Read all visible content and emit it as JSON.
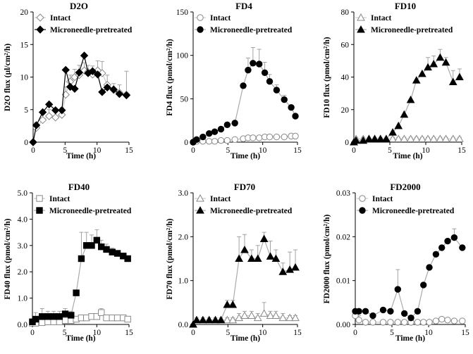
{
  "chart_data": [
    {
      "type": "line",
      "title": "D2O",
      "xlabel": "Time (h)",
      "ylabel": "D2O flux (µl/cm²/h)",
      "xlim": [
        0,
        15
      ],
      "ylim": [
        0,
        20
      ],
      "xticks": [
        "0",
        "5",
        "10",
        "15"
      ],
      "yticks": [
        "0",
        "5",
        "10",
        "15",
        "20"
      ],
      "legend_position": "top-left",
      "x": [
        0,
        0.5,
        1.5,
        2.5,
        3.5,
        4.5,
        5.1,
        5.8,
        6.5,
        7.2,
        8,
        8.6,
        9.3,
        10.1,
        10.8,
        11.6,
        12.6,
        13.5,
        14.6
      ],
      "series": [
        {
          "name": "Intact",
          "marker": "diamond-open",
          "line_color": "#cccccc",
          "values": [
            0,
            2.2,
            3.4,
            4.0,
            3.8,
            4.2,
            7.3,
            9.3,
            10.0,
            10.3,
            11.0,
            10.8,
            10.4,
            11.0,
            10.6,
            8.8,
            8.0,
            7.6,
            7.3
          ],
          "errors": [
            0,
            0.8,
            0.9,
            1.0,
            0.8,
            1.1,
            1.2,
            1.0,
            1.2,
            1.5,
            1.2,
            1.0,
            1.3,
            1.5,
            1.8,
            1.5,
            1.0,
            1.2,
            3.6
          ]
        },
        {
          "name": "Microneedle-pretreated",
          "marker": "diamond-filled",
          "line_color": "#000000",
          "values": [
            0,
            2.6,
            4.6,
            5.8,
            4.9,
            4.9,
            11.1,
            8.5,
            8.2,
            10.7,
            13.3,
            10.6,
            10.9,
            10.4,
            7.7,
            8.4,
            8.1,
            7.4,
            7.2
          ],
          "errors": [
            0,
            0,
            0,
            0,
            0,
            0,
            0,
            0,
            0,
            0,
            0,
            0,
            0,
            0,
            0,
            0,
            0,
            0,
            0
          ]
        }
      ]
    },
    {
      "type": "line",
      "title": "FD4",
      "xlabel": "Time (h)",
      "ylabel": "FD4 flux (pmol/cm²/h)",
      "xlim": [
        0,
        15
      ],
      "ylim": [
        0,
        150
      ],
      "xticks": [
        "0",
        "5",
        "10",
        "15"
      ],
      "yticks": [
        "0",
        "50",
        "100",
        "150"
      ],
      "legend_position": "top-left",
      "x": [
        0,
        0.5,
        1.4,
        2.3,
        3.1,
        4.0,
        4.9,
        6.0,
        7.2,
        7.9,
        8.6,
        9.5,
        10.3,
        11.0,
        12.0,
        13.1,
        14.1,
        14.7
      ],
      "series": [
        {
          "name": "Intact",
          "marker": "circle-open",
          "line_color": "#cccccc",
          "values": [
            0,
            1,
            1,
            1,
            1,
            2,
            2,
            3,
            4,
            5,
            5,
            5,
            6,
            6,
            6,
            6,
            7,
            7
          ],
          "errors": [
            0,
            0,
            0,
            0,
            0,
            0,
            0,
            0,
            0,
            0,
            0,
            0,
            0,
            0,
            0,
            0,
            0,
            0
          ]
        },
        {
          "name": "Microneedle-pretreated",
          "marker": "circle-filled",
          "line_color": "#aaaaaa",
          "values": [
            0,
            3,
            6,
            10,
            12,
            15,
            20,
            22,
            65,
            83,
            91,
            90,
            80,
            70,
            60,
            49,
            40,
            30
          ],
          "errors": [
            0,
            0,
            0,
            0,
            0,
            0,
            0,
            0,
            0,
            14,
            18,
            17,
            12,
            8,
            6,
            5,
            0,
            0
          ]
        }
      ]
    },
    {
      "type": "line",
      "title": "FD10",
      "xlabel": "Time (h)",
      "ylabel": "FD10 flux (pmol/cm²/h)",
      "xlim": [
        0,
        15
      ],
      "ylim": [
        0,
        80
      ],
      "xticks": [
        "0",
        "5",
        "10",
        "15"
      ],
      "yticks": [
        "0",
        "20",
        "40",
        "60",
        "80"
      ],
      "legend_position": "top-left",
      "x": [
        0,
        0.3,
        1.3,
        2.1,
        2.9,
        3.7,
        4.5,
        5.4,
        6.2,
        7.0,
        7.9,
        8.7,
        9.5,
        10.3,
        11.1,
        12.0,
        12.8,
        13.8,
        14.7
      ],
      "series": [
        {
          "name": "Intact",
          "marker": "triangle-open",
          "line_color": "#cccccc",
          "values": [
            0,
            2,
            2,
            2,
            2,
            2,
            2,
            2,
            2,
            2,
            2,
            2,
            2,
            2,
            2,
            2,
            2,
            2,
            2
          ],
          "errors": [
            0,
            1,
            1,
            1,
            1,
            1,
            1,
            1,
            1,
            1,
            1,
            1,
            1,
            1,
            1,
            1,
            1,
            1,
            1
          ]
        },
        {
          "name": "Microneedle-pretreated",
          "marker": "triangle-filled",
          "line_color": "#aaaaaa",
          "values": [
            0,
            1,
            1,
            2,
            2,
            2,
            2,
            6,
            10,
            17,
            26,
            38,
            42,
            46,
            48,
            52,
            49,
            37,
            40
          ],
          "errors": [
            0,
            0,
            0,
            0,
            0,
            0,
            0,
            0,
            0,
            0,
            0,
            0,
            0,
            6,
            5,
            5,
            3,
            7,
            5
          ]
        }
      ]
    },
    {
      "type": "line",
      "title": "FD40",
      "xlabel": "Time (h)",
      "ylabel": "FD40 flux (pmol/cm²/h)",
      "xlim": [
        0,
        15
      ],
      "ylim": [
        0,
        5
      ],
      "xticks": [
        "0",
        "5",
        "10",
        "15"
      ],
      "yticks": [
        "0.0",
        "1.0",
        "2.0",
        "3.0",
        "4.0",
        "5.0"
      ],
      "legend_position": "top-left",
      "x": [
        0,
        0.5,
        1.5,
        2.4,
        3.3,
        4.2,
        5.1,
        6.0,
        6.8,
        7.6,
        8.4,
        9.2,
        10.0,
        10.7,
        11.5,
        12.4,
        13.2,
        14.1,
        14.8
      ],
      "series": [
        {
          "name": "Intact",
          "marker": "square-open",
          "line_color": "#cccccc",
          "values": [
            0.05,
            0.05,
            0.07,
            0.1,
            0.1,
            0.1,
            0.15,
            0.15,
            0.2,
            0.25,
            0.25,
            0.3,
            0.3,
            0.45,
            0.25,
            0.25,
            0.25,
            0.25,
            0.2
          ],
          "errors": [
            0,
            0,
            0,
            0,
            0,
            0,
            0,
            0,
            0.05,
            0.1,
            0.1,
            0.1,
            0.1,
            0.15,
            0.1,
            0.1,
            0.1,
            0.1,
            0.05
          ]
        },
        {
          "name": "Microneedle-pretreated",
          "marker": "square-filled",
          "line_color": "#aaaaaa",
          "values": [
            0.1,
            0.2,
            0.3,
            0.3,
            0.3,
            0.3,
            0.4,
            0.35,
            1.2,
            2.5,
            3.0,
            3.0,
            3.2,
            2.95,
            2.85,
            2.75,
            2.7,
            2.6,
            2.5
          ],
          "errors": [
            0,
            0.25,
            0.3,
            0.2,
            0.2,
            0.2,
            0.2,
            0.15,
            0,
            1.0,
            0.5,
            0.4,
            0.4,
            0.25,
            0.2,
            0.15,
            0,
            0,
            0
          ]
        }
      ]
    },
    {
      "type": "line",
      "title": "FD70",
      "xlabel": "Time (h)",
      "ylabel": "FD70 flux (pmol/cm²/h)",
      "xlim": [
        0,
        15
      ],
      "ylim": [
        0,
        3
      ],
      "xticks": [
        "0",
        "5",
        "10",
        "15"
      ],
      "yticks": [
        "0.0",
        "1.0",
        "2.0",
        "3.0"
      ],
      "legend_position": "top-left",
      "x": [
        0,
        0.5,
        1.4,
        2.3,
        3.2,
        4.0,
        4.9,
        5.7,
        6.6,
        7.4,
        8.4,
        9.3,
        10.2,
        11.1,
        11.9,
        12.9,
        13.9,
        14.7
      ],
      "series": [
        {
          "name": "Intact",
          "marker": "triangle-open",
          "line_color": "#cccccc",
          "values": [
            0,
            0.1,
            0.1,
            0.1,
            0.1,
            0.1,
            0.1,
            0.1,
            0.15,
            0.2,
            0.2,
            0.15,
            0.25,
            0.2,
            0.2,
            0.15,
            0.15,
            0.15
          ],
          "errors": [
            0,
            0.05,
            0.05,
            0.05,
            0.05,
            0.05,
            0.05,
            0.05,
            0.1,
            0.1,
            0.1,
            0.1,
            0.25,
            0.1,
            0.1,
            0.1,
            0.05,
            0.05
          ]
        },
        {
          "name": "Microneedle-pretreated",
          "marker": "triangle-filled",
          "line_color": "#aaaaaa",
          "values": [
            0,
            0.1,
            0.1,
            0.1,
            0.1,
            0.1,
            0.45,
            0.45,
            1.5,
            1.7,
            1.5,
            1.5,
            1.95,
            1.55,
            1.5,
            1.2,
            1.25,
            1.3
          ],
          "errors": [
            0,
            0,
            0,
            0,
            0,
            0,
            0.1,
            0.1,
            0.5,
            0.35,
            0.2,
            0.3,
            0.15,
            0.35,
            0.2,
            0.2,
            0.4,
            0.4
          ]
        }
      ]
    },
    {
      "type": "line",
      "title": "FD2000",
      "xlabel": "Time (h)",
      "ylabel": "FD2000 flux (pmol/cm²/h)",
      "xlim": [
        0,
        15
      ],
      "ylim": [
        0,
        0.03
      ],
      "xticks": [
        "0",
        "5",
        "10",
        "15"
      ],
      "yticks": [
        "0.00",
        "0.01",
        "0.02",
        "0.03"
      ],
      "legend_position": "top-left",
      "x": [
        0,
        0.5,
        1.4,
        2.4,
        3.8,
        4.8,
        5.8,
        6.7,
        7.6,
        8.5,
        9.3,
        10.1,
        11.0,
        11.8,
        12.6,
        13.5,
        14.6
      ],
      "series": [
        {
          "name": "Intact",
          "marker": "circle-open",
          "line_color": "#cccccc",
          "values": [
            0.002,
            0.001,
            0.0005,
            0.0005,
            0.0005,
            0.0005,
            0.0005,
            0.0005,
            0.0005,
            0.0005,
            0.0005,
            0.0005,
            0.0008,
            0.0012,
            0.001,
            0.0008,
            0.0008
          ],
          "errors": [
            0.0015,
            0.001,
            0.0005,
            0.0005,
            0.0005,
            0.0005,
            0.0005,
            0.0005,
            0.0005,
            0.0005,
            0.0005,
            0.0005,
            0.0005,
            0.0005,
            0.0005,
            0.0005,
            0.0005
          ]
        },
        {
          "name": "Microneedle-pretreated",
          "marker": "circle-filled",
          "line_color": "#aaaaaa",
          "values": [
            0.003,
            0.003,
            0.003,
            0.002,
            0.0033,
            0.003,
            0.008,
            0.0025,
            0.0015,
            0.003,
            0.009,
            0.013,
            0.016,
            0.0175,
            0.019,
            0.0198,
            0.0175
          ],
          "errors": [
            0,
            0,
            0,
            0,
            0,
            0,
            0.0045,
            0,
            0,
            0,
            0,
            0,
            0,
            0,
            0,
            0.002,
            0.0005
          ]
        }
      ]
    }
  ]
}
